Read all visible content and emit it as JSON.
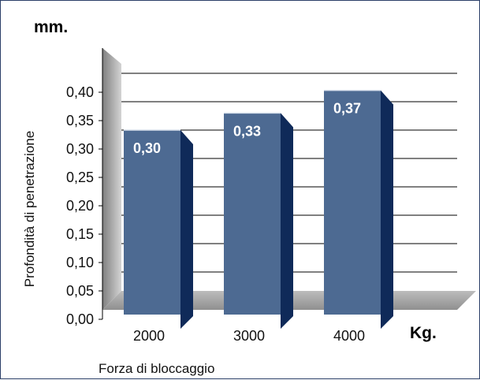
{
  "chart_data": {
    "type": "bar",
    "unit_y": "mm.",
    "unit_x": "Kg.",
    "ylabel": "Profondità di penetrazione",
    "xlabel": "Forza di bloccaggio",
    "categories": [
      "2000",
      "3000",
      "4000"
    ],
    "values": [
      0.3,
      0.33,
      0.37
    ],
    "data_labels": [
      "0,30",
      "0,33",
      "0,37"
    ],
    "y_ticks": [
      0.0,
      0.05,
      0.1,
      0.15,
      0.2,
      0.25,
      0.3,
      0.35,
      0.4
    ],
    "y_tick_labels": [
      "0,00",
      "0,05",
      "0,10",
      "0,15",
      "0,20",
      "0,25",
      "0,30",
      "0,35",
      "0,40"
    ],
    "ylim": [
      0,
      0.45
    ],
    "grid": true,
    "colors": {
      "bar_front": "#4d6a92",
      "bar_side": "#0f2a59",
      "bar_top": "#d9e1ec",
      "wall": "#9a9a9a",
      "floor": "#a8a8a8",
      "frame": "#2b3f68"
    }
  }
}
